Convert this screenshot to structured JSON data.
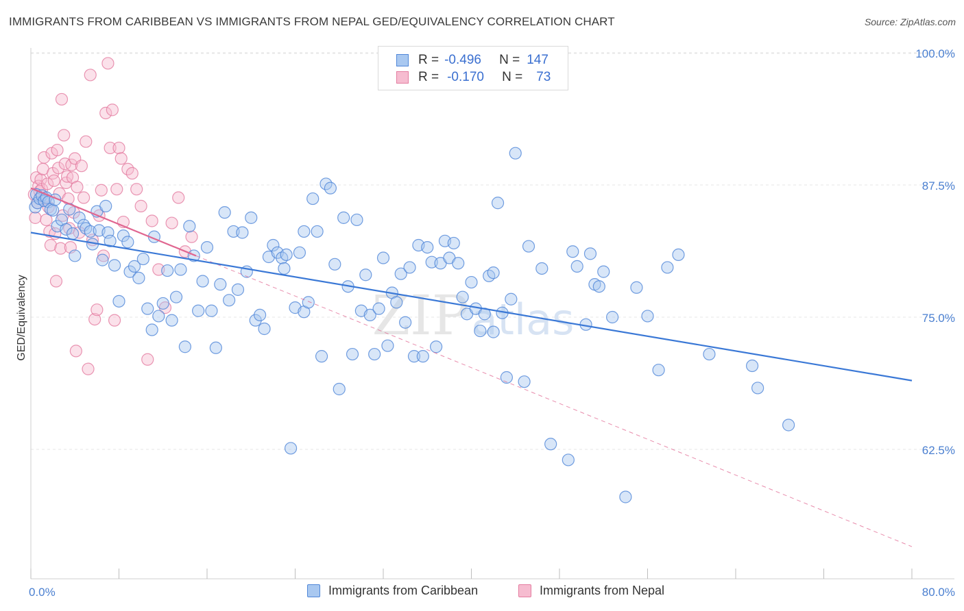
{
  "title": "IMMIGRANTS FROM CARIBBEAN VS IMMIGRANTS FROM NEPAL GED/EQUIVALENCY CORRELATION CHART",
  "source": "Source: ZipAtlas.com",
  "watermark": "ZIPatlas",
  "legend": {
    "series1": {
      "r_label": "R =",
      "r_value": "-0.496",
      "n_label": "N =",
      "n_value": "147"
    },
    "series2": {
      "r_label": "R =",
      "r_value": "-0.170",
      "n_label": "N =",
      "n_value": "73"
    }
  },
  "colors": {
    "blue_fill": "#a9c8f0",
    "blue_stroke": "#4f86d8",
    "blue_line": "#3a78d6",
    "pink_fill": "#f6bcd0",
    "pink_stroke": "#e47ca0",
    "pink_line": "#e06690",
    "tick_text": "#4a7fd0",
    "grid": "#e5e5e5"
  },
  "chart_data": {
    "type": "scatter",
    "title": "IMMIGRANTS FROM CARIBBEAN VS IMMIGRANTS FROM NEPAL GED/EQUIVALENCY CORRELATION CHART",
    "xlabel": "",
    "ylabel": "GED/Equivalency",
    "xlim": [
      0,
      80
    ],
    "ylim": [
      52.5,
      102
    ],
    "x_tick_labels": [
      "0.0%",
      "80.0%"
    ],
    "y_ticks": [
      62.5,
      75.0,
      87.5,
      100.0
    ],
    "y_tick_labels": [
      "62.5%",
      "75.0%",
      "87.5%",
      "100.0%"
    ],
    "grid": true,
    "legend_position": "top-center and bottom",
    "series": [
      {
        "name": "Immigrants from Caribbean",
        "color": "#a9c8f0",
        "trend": {
          "x": [
            0,
            80
          ],
          "y": [
            83.0,
            69.0
          ]
        },
        "points": [
          [
            0.4,
            85.4
          ],
          [
            0.5,
            86.6
          ],
          [
            0.6,
            85.8
          ],
          [
            0.8,
            86.2
          ],
          [
            1.0,
            86.5
          ],
          [
            1.2,
            86.0
          ],
          [
            1.4,
            86.3
          ],
          [
            1.6,
            85.9
          ],
          [
            1.8,
            85.2
          ],
          [
            2.0,
            85.1
          ],
          [
            2.2,
            86.1
          ],
          [
            2.4,
            83.6
          ],
          [
            2.8,
            84.2
          ],
          [
            3.2,
            83.3
          ],
          [
            3.5,
            85.2
          ],
          [
            3.8,
            82.9
          ],
          [
            4.0,
            80.8
          ],
          [
            4.4,
            84.4
          ],
          [
            4.8,
            83.7
          ],
          [
            5.0,
            83.4
          ],
          [
            5.4,
            83.1
          ],
          [
            5.6,
            81.9
          ],
          [
            6.0,
            85.0
          ],
          [
            6.2,
            83.2
          ],
          [
            6.5,
            80.4
          ],
          [
            6.8,
            85.5
          ],
          [
            7.0,
            83.0
          ],
          [
            7.2,
            82.2
          ],
          [
            7.6,
            79.9
          ],
          [
            8.0,
            76.5
          ],
          [
            8.4,
            82.7
          ],
          [
            8.8,
            82.1
          ],
          [
            9.0,
            79.3
          ],
          [
            9.4,
            79.8
          ],
          [
            9.8,
            78.7
          ],
          [
            10.2,
            80.5
          ],
          [
            10.6,
            75.8
          ],
          [
            11.0,
            73.8
          ],
          [
            11.2,
            82.6
          ],
          [
            11.6,
            75.1
          ],
          [
            12.0,
            76.3
          ],
          [
            12.4,
            79.4
          ],
          [
            12.8,
            74.7
          ],
          [
            13.2,
            76.9
          ],
          [
            13.6,
            79.5
          ],
          [
            14.0,
            72.2
          ],
          [
            14.4,
            83.6
          ],
          [
            14.8,
            80.8
          ],
          [
            15.2,
            75.6
          ],
          [
            15.6,
            78.4
          ],
          [
            16.0,
            81.6
          ],
          [
            16.4,
            75.6
          ],
          [
            16.8,
            72.1
          ],
          [
            17.2,
            78.1
          ],
          [
            17.6,
            84.9
          ],
          [
            18.0,
            76.6
          ],
          [
            18.4,
            83.1
          ],
          [
            18.8,
            77.6
          ],
          [
            19.2,
            83.0
          ],
          [
            19.6,
            79.3
          ],
          [
            20.0,
            84.4
          ],
          [
            20.4,
            74.7
          ],
          [
            20.8,
            75.2
          ],
          [
            21.2,
            73.9
          ],
          [
            21.6,
            80.7
          ],
          [
            22.0,
            81.8
          ],
          [
            22.4,
            81.1
          ],
          [
            22.8,
            80.6
          ],
          [
            23.2,
            80.9
          ],
          [
            23.6,
            62.6
          ],
          [
            24.0,
            75.9
          ],
          [
            24.4,
            81.1
          ],
          [
            24.8,
            75.5
          ],
          [
            25.2,
            76.4
          ],
          [
            25.6,
            86.2
          ],
          [
            26.0,
            83.1
          ],
          [
            26.4,
            71.3
          ],
          [
            26.8,
            87.6
          ],
          [
            27.2,
            87.2
          ],
          [
            27.6,
            80.0
          ],
          [
            28.0,
            68.2
          ],
          [
            28.4,
            84.4
          ],
          [
            28.8,
            77.9
          ],
          [
            29.2,
            71.5
          ],
          [
            29.6,
            84.2
          ],
          [
            30.0,
            75.6
          ],
          [
            30.4,
            79.0
          ],
          [
            30.8,
            75.2
          ],
          [
            31.2,
            71.5
          ],
          [
            31.6,
            75.8
          ],
          [
            32.0,
            80.6
          ],
          [
            32.4,
            72.3
          ],
          [
            32.8,
            77.3
          ],
          [
            33.2,
            76.4
          ],
          [
            33.6,
            79.1
          ],
          [
            34.0,
            74.5
          ],
          [
            34.4,
            79.7
          ],
          [
            34.8,
            71.3
          ],
          [
            35.2,
            81.8
          ],
          [
            35.6,
            71.3
          ],
          [
            36.0,
            81.6
          ],
          [
            36.4,
            80.2
          ],
          [
            36.8,
            72.2
          ],
          [
            37.2,
            80.1
          ],
          [
            37.6,
            82.2
          ],
          [
            38.0,
            80.6
          ],
          [
            38.4,
            82.0
          ],
          [
            38.8,
            80.1
          ],
          [
            39.2,
            76.9
          ],
          [
            39.6,
            75.3
          ],
          [
            40.0,
            78.3
          ],
          [
            40.4,
            75.8
          ],
          [
            40.8,
            73.7
          ],
          [
            41.2,
            75.3
          ],
          [
            41.6,
            78.9
          ],
          [
            42.0,
            73.6
          ],
          [
            42.4,
            85.8
          ],
          [
            42.8,
            75.4
          ],
          [
            43.2,
            69.3
          ],
          [
            43.6,
            76.7
          ],
          [
            44.0,
            90.5
          ],
          [
            44.8,
            68.9
          ],
          [
            45.2,
            81.7
          ],
          [
            46.4,
            79.6
          ],
          [
            47.2,
            63.0
          ],
          [
            48.8,
            61.5
          ],
          [
            49.2,
            81.2
          ],
          [
            49.6,
            79.8
          ],
          [
            50.4,
            74.3
          ],
          [
            50.8,
            81.0
          ],
          [
            51.2,
            78.1
          ],
          [
            51.6,
            77.9
          ],
          [
            52.0,
            79.3
          ],
          [
            52.8,
            75.0
          ],
          [
            54.0,
            58.0
          ],
          [
            55.0,
            77.8
          ],
          [
            56.0,
            75.1
          ],
          [
            57.0,
            70.0
          ],
          [
            57.8,
            79.7
          ],
          [
            58.8,
            80.9
          ],
          [
            61.6,
            71.5
          ],
          [
            65.5,
            70.4
          ],
          [
            66.0,
            68.3
          ],
          [
            68.8,
            64.8
          ],
          [
            42.0,
            79.2
          ],
          [
            23.0,
            79.6
          ],
          [
            24.8,
            83.1
          ]
        ]
      },
      {
        "name": "Immigrants from Nepal",
        "color": "#f6bcd0",
        "trend": {
          "x": [
            0,
            15
          ],
          "y": [
            87.2,
            80.8
          ]
        },
        "trend_extended": {
          "x": [
            15,
            80
          ],
          "y": [
            80.8,
            53.3
          ]
        },
        "points": [
          [
            0.3,
            86.6
          ],
          [
            0.4,
            84.4
          ],
          [
            0.5,
            88.2
          ],
          [
            0.6,
            85.8
          ],
          [
            0.7,
            87.4
          ],
          [
            0.8,
            86.9
          ],
          [
            0.9,
            88.0
          ],
          [
            1.0,
            87.1
          ],
          [
            1.1,
            89.0
          ],
          [
            1.2,
            90.1
          ],
          [
            1.3,
            86.2
          ],
          [
            1.4,
            84.2
          ],
          [
            1.5,
            87.6
          ],
          [
            1.6,
            85.4
          ],
          [
            1.7,
            83.1
          ],
          [
            1.8,
            81.8
          ],
          [
            1.9,
            90.5
          ],
          [
            2.0,
            88.6
          ],
          [
            2.1,
            87.9
          ],
          [
            2.2,
            82.9
          ],
          [
            2.3,
            78.4
          ],
          [
            2.4,
            90.8
          ],
          [
            2.5,
            89.1
          ],
          [
            2.6,
            86.7
          ],
          [
            2.7,
            81.5
          ],
          [
            2.8,
            95.6
          ],
          [
            2.9,
            84.6
          ],
          [
            3.0,
            92.2
          ],
          [
            3.1,
            89.5
          ],
          [
            3.2,
            87.7
          ],
          [
            3.3,
            88.3
          ],
          [
            3.4,
            86.2
          ],
          [
            3.5,
            83.4
          ],
          [
            3.6,
            81.6
          ],
          [
            3.7,
            89.4
          ],
          [
            3.8,
            88.2
          ],
          [
            3.9,
            84.9
          ],
          [
            4.0,
            90.0
          ],
          [
            4.1,
            71.8
          ],
          [
            4.2,
            87.3
          ],
          [
            4.4,
            83.0
          ],
          [
            4.6,
            89.3
          ],
          [
            4.8,
            86.3
          ],
          [
            5.0,
            91.6
          ],
          [
            5.2,
            70.1
          ],
          [
            5.4,
            97.9
          ],
          [
            5.6,
            82.3
          ],
          [
            5.8,
            74.8
          ],
          [
            6.0,
            75.7
          ],
          [
            6.2,
            84.6
          ],
          [
            6.4,
            87.0
          ],
          [
            6.6,
            80.8
          ],
          [
            6.8,
            94.3
          ],
          [
            7.0,
            99.0
          ],
          [
            7.2,
            91.0
          ],
          [
            7.4,
            94.6
          ],
          [
            7.6,
            74.7
          ],
          [
            7.8,
            87.1
          ],
          [
            8.0,
            91.0
          ],
          [
            8.2,
            90.0
          ],
          [
            8.4,
            84.0
          ],
          [
            8.8,
            89.0
          ],
          [
            9.2,
            88.6
          ],
          [
            9.6,
            87.1
          ],
          [
            10.0,
            85.5
          ],
          [
            10.6,
            71.0
          ],
          [
            11.0,
            84.1
          ],
          [
            11.6,
            79.5
          ],
          [
            12.2,
            75.9
          ],
          [
            12.8,
            83.9
          ],
          [
            13.4,
            86.3
          ],
          [
            14.0,
            81.2
          ],
          [
            14.6,
            82.6
          ]
        ]
      }
    ]
  }
}
